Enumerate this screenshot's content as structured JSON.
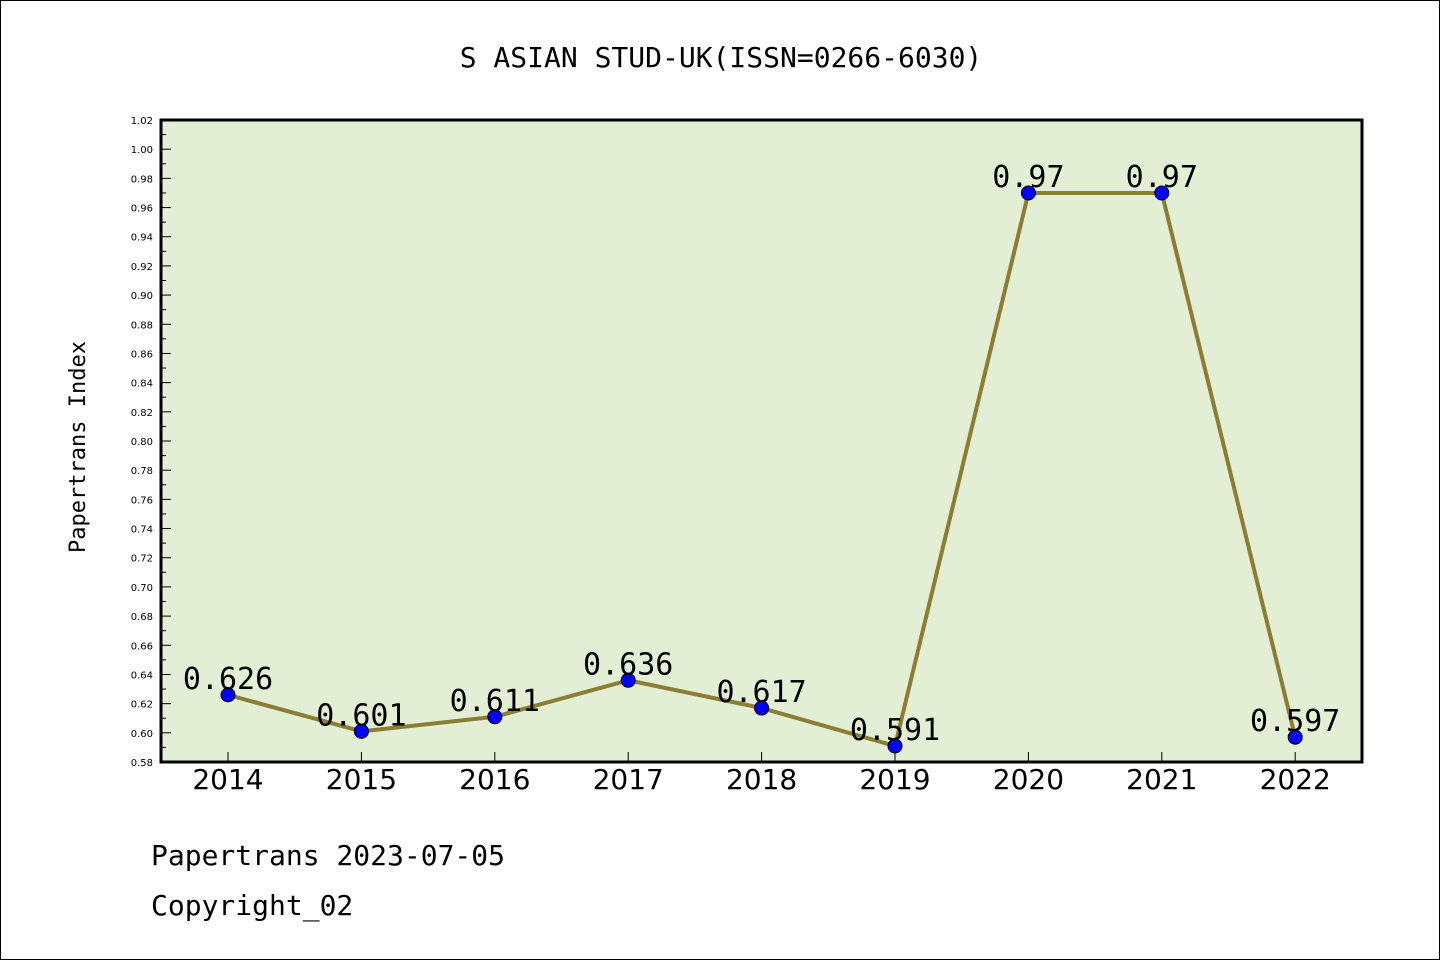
{
  "chart_data": {
    "type": "line",
    "title": "S ASIAN STUD-UK(ISSN=0266-6030)",
    "xlabel": "",
    "ylabel": "Papertrans Index",
    "ylim": [
      0.58,
      1.02
    ],
    "ytick_step": 0.02,
    "grid": false,
    "categories": [
      "2014",
      "2015",
      "2016",
      "2017",
      "2018",
      "2019",
      "2020",
      "2021",
      "2022"
    ],
    "series": [
      {
        "values": [
          0.626,
          0.601,
          0.611,
          0.636,
          0.617,
          0.591,
          0.97,
          0.97,
          0.597
        ],
        "labels": [
          "0.626",
          "0.601",
          "0.611",
          "0.636",
          "0.617",
          "0.591",
          "0.97",
          "0.97",
          "0.597"
        ]
      }
    ],
    "colors": {
      "plot_background": "#e2efd5",
      "line": "#8b7d32",
      "marker": "#0000ff"
    }
  },
  "footer": {
    "line1": "Papertrans 2023-07-05",
    "line2": "Copyright_02"
  }
}
